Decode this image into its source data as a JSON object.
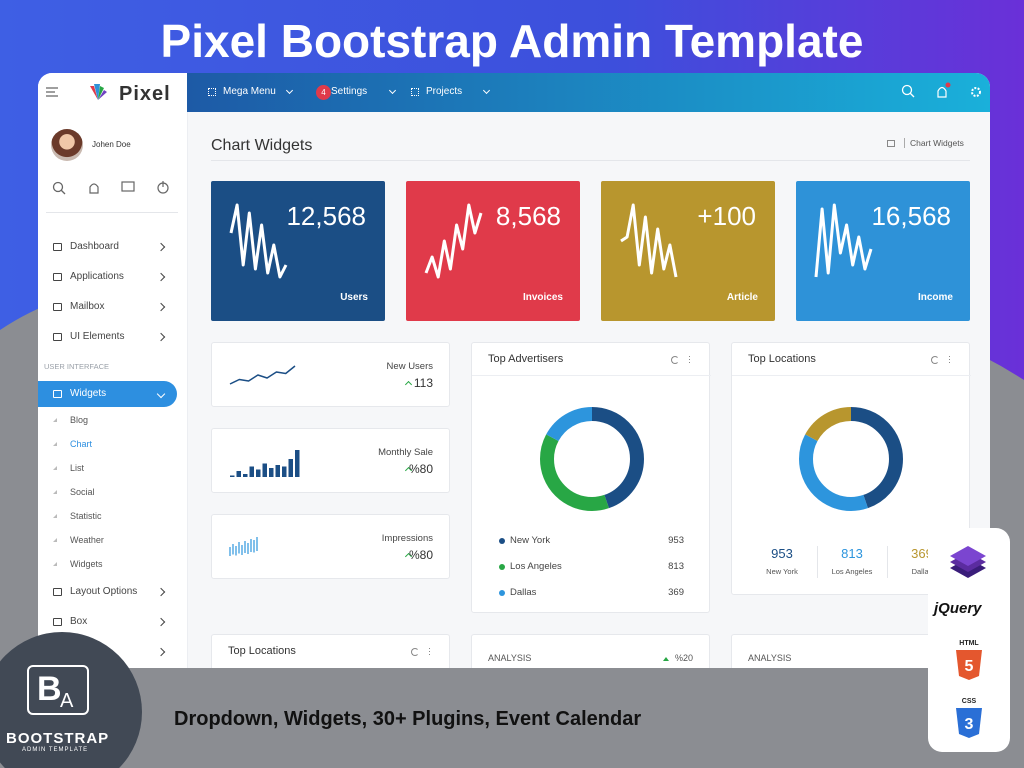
{
  "banner": {
    "title": "Pixel Bootstrap Admin Template",
    "caption": "Dropdown, Widgets, 30+ Plugins, Event Calendar"
  },
  "brand": "Pixel",
  "navbar": {
    "menu": [
      {
        "label": "Mega Menu"
      },
      {
        "label": "Settings",
        "badge": 4
      },
      {
        "label": "Projects"
      }
    ]
  },
  "user": "Johen Doe",
  "sidebar": {
    "items": [
      "Dashboard",
      "Applications",
      "Mailbox",
      "UI Elements"
    ],
    "section": "USER INTERFACE",
    "active": "Widgets",
    "subitems": [
      "Blog",
      "Chart",
      "List",
      "Social",
      "Statistic",
      "Weather",
      "Widgets"
    ],
    "active_subitem": 1,
    "more": [
      "Layout Options",
      "Box"
    ]
  },
  "page": {
    "title": "Chart Widgets",
    "breadcrumb": "Chart Widgets"
  },
  "stat_cards": [
    {
      "value": "12,568",
      "label": "Users",
      "color": "#1b4e85",
      "spark": [
        60,
        95,
        20,
        85,
        15,
        70,
        10,
        45,
        5,
        20
      ]
    },
    {
      "value": "8,568",
      "label": "Invoices",
      "color": "#e03a4a",
      "spark": [
        10,
        30,
        5,
        50,
        15,
        70,
        40,
        95,
        60,
        85
      ]
    },
    {
      "value": "+100",
      "label": "Article",
      "color": "#b8962e",
      "spark": [
        50,
        55,
        95,
        20,
        80,
        10,
        65,
        15,
        45,
        5
      ]
    },
    {
      "value": "16,568",
      "label": "Income",
      "color": "#2e92d8",
      "spark": [
        5,
        90,
        10,
        95,
        35,
        70,
        20,
        55,
        15,
        40
      ]
    }
  ],
  "mini_widgets": [
    {
      "label": "New Users",
      "value": 113,
      "chart": "line",
      "data": [
        10,
        25,
        20,
        40,
        30,
        50,
        45,
        70
      ]
    },
    {
      "label": "Monthly Sale",
      "value": "%80",
      "chart": "bar",
      "data": [
        5,
        20,
        10,
        35,
        25,
        45,
        30,
        40,
        35,
        60,
        90
      ]
    },
    {
      "label": "Impressions",
      "value": "%80",
      "chart": "tick",
      "data": [
        30,
        45,
        35,
        55,
        40,
        60,
        50,
        70,
        65,
        80
      ]
    }
  ],
  "top_advertisers": {
    "title": "Top Advertisers",
    "items": [
      {
        "name": "New York",
        "value": 953,
        "color": "#1b4e85"
      },
      {
        "name": "Los Angeles",
        "value": 813,
        "color": "#28a745"
      },
      {
        "name": "Dallas",
        "value": 369,
        "color": "#2d95dd"
      }
    ]
  },
  "top_locations": {
    "title": "Top Locations",
    "items": [
      {
        "name": "New York",
        "value": 953,
        "color": "#1b4e85"
      },
      {
        "name": "Los Angeles",
        "value": 813,
        "color": "#2d95dd"
      },
      {
        "name": "Dallas",
        "value": 369,
        "color": "#b8962e"
      }
    ]
  },
  "bottom_cards": [
    {
      "title": "Top Locations"
    },
    {
      "title": "ANALYSIS",
      "change": "%20"
    },
    {
      "title": "ANALYSIS"
    }
  ],
  "logo": {
    "letters": [
      "B",
      "A"
    ],
    "name": "BOOTSTRAP",
    "tagline": "ADMIN TEMPLATE"
  },
  "tech": [
    "jQuery",
    {
      "name": "HTML",
      "version": 5
    },
    {
      "name": "CSS",
      "version": 3
    }
  ]
}
